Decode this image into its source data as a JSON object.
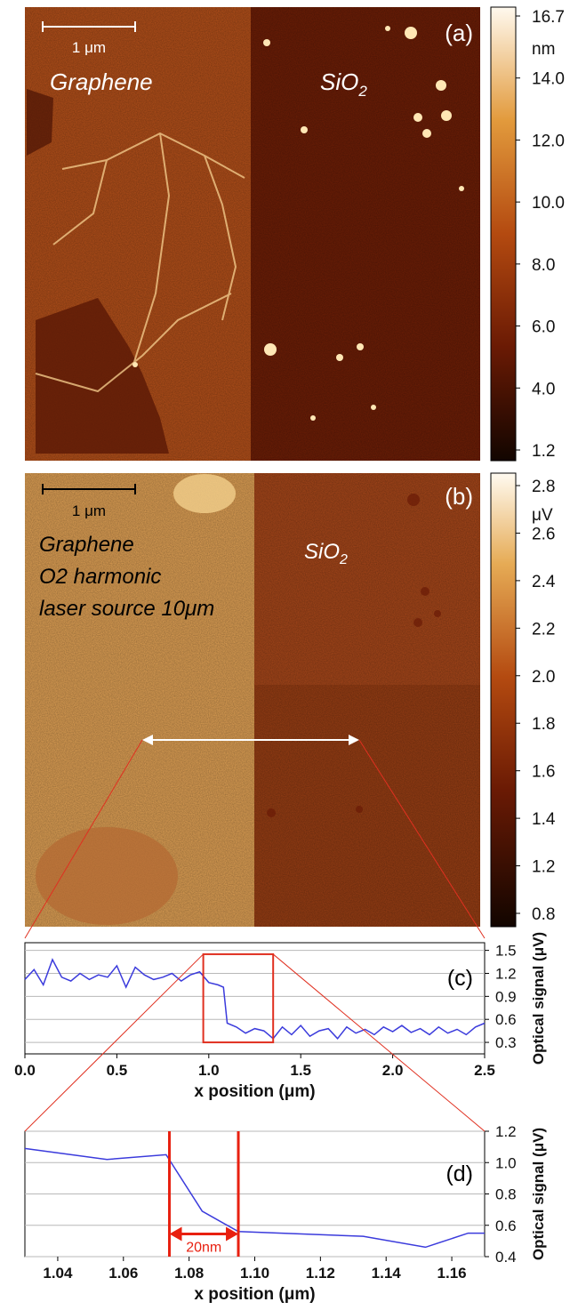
{
  "panel_a": {
    "label": "(a)",
    "scalebar": "1 μm",
    "left_label": "Graphene",
    "right_label_main": "SiO",
    "right_label_sub": "2",
    "colorbar": {
      "unit": "nm",
      "ticks": [
        "16.7",
        "14.0",
        "12.0",
        "10.0",
        "8.0",
        "6.0",
        "4.0",
        "1.2"
      ]
    }
  },
  "panel_b": {
    "label": "(b)",
    "scalebar": "1 μm",
    "left_label_lines": [
      "Graphene",
      "O2 harmonic",
      "laser source 10μm"
    ],
    "right_label_main": "SiO",
    "right_label_sub": "2",
    "colorbar": {
      "unit": "μV",
      "ticks": [
        "2.8",
        "2.6",
        "2.4",
        "2.2",
        "2.0",
        "1.8",
        "1.6",
        "1.4",
        "1.2",
        "0.8"
      ]
    }
  },
  "panel_c": {
    "label": "(c)"
  },
  "panel_d": {
    "label": "(d)",
    "annotation": "20nm"
  },
  "chart_data": [
    {
      "type": "line",
      "panel": "(c)",
      "xlabel": "x position (μm)",
      "ylabel": "Optical signal (μV)",
      "xlim": [
        0.0,
        2.5
      ],
      "ylim": [
        0.15,
        1.6
      ],
      "xticks": [
        "0.0",
        "0.5",
        "1.0",
        "1.5",
        "2.0",
        "2.5"
      ],
      "yticks": [
        "0.3",
        "0.6",
        "0.9",
        "1.2",
        "1.5"
      ],
      "grid": true,
      "series": [
        {
          "x": [
            0.0,
            0.05,
            0.1,
            0.15,
            0.2,
            0.25,
            0.3,
            0.35,
            0.4,
            0.45,
            0.5,
            0.55,
            0.6,
            0.65,
            0.7,
            0.75,
            0.8,
            0.85,
            0.9,
            0.95,
            1.0,
            1.05,
            1.08,
            1.1,
            1.15,
            1.2,
            1.25,
            1.3,
            1.35,
            1.4,
            1.45,
            1.5,
            1.55,
            1.6,
            1.65,
            1.7,
            1.75,
            1.8,
            1.85,
            1.9,
            1.95,
            2.0,
            2.05,
            2.1,
            2.15,
            2.2,
            2.25,
            2.3,
            2.35,
            2.4,
            2.45,
            2.5
          ],
          "y": [
            1.12,
            1.25,
            1.05,
            1.38,
            1.15,
            1.1,
            1.2,
            1.12,
            1.18,
            1.15,
            1.3,
            1.02,
            1.28,
            1.18,
            1.12,
            1.15,
            1.2,
            1.1,
            1.18,
            1.22,
            1.08,
            1.05,
            1.02,
            0.55,
            0.5,
            0.42,
            0.48,
            0.45,
            0.35,
            0.5,
            0.4,
            0.52,
            0.38,
            0.45,
            0.48,
            0.35,
            0.5,
            0.42,
            0.47,
            0.4,
            0.5,
            0.44,
            0.52,
            0.43,
            0.48,
            0.4,
            0.5,
            0.42,
            0.47,
            0.4,
            0.5,
            0.55
          ]
        }
      ],
      "highlight_box": {
        "x": [
          0.97,
          1.35
        ],
        "y": [
          0.3,
          1.45
        ]
      }
    },
    {
      "type": "line",
      "panel": "(d)",
      "xlabel": "x position (μm)",
      "ylabel": "Optical signal (μV)",
      "xlim": [
        1.03,
        1.17
      ],
      "ylim": [
        0.4,
        1.2
      ],
      "xticks": [
        "1.04",
        "1.06",
        "1.08",
        "1.10",
        "1.12",
        "1.14",
        "1.16"
      ],
      "yticks": [
        "0.4",
        "0.6",
        "0.8",
        "1.0",
        "1.2"
      ],
      "grid": true,
      "series": [
        {
          "x": [
            1.03,
            1.055,
            1.073,
            1.084,
            1.095,
            1.133,
            1.152,
            1.165,
            1.17
          ],
          "y": [
            1.09,
            1.02,
            1.05,
            0.69,
            0.56,
            0.53,
            0.46,
            0.55,
            0.55
          ]
        }
      ],
      "markers": [
        1.074,
        1.095
      ]
    }
  ]
}
